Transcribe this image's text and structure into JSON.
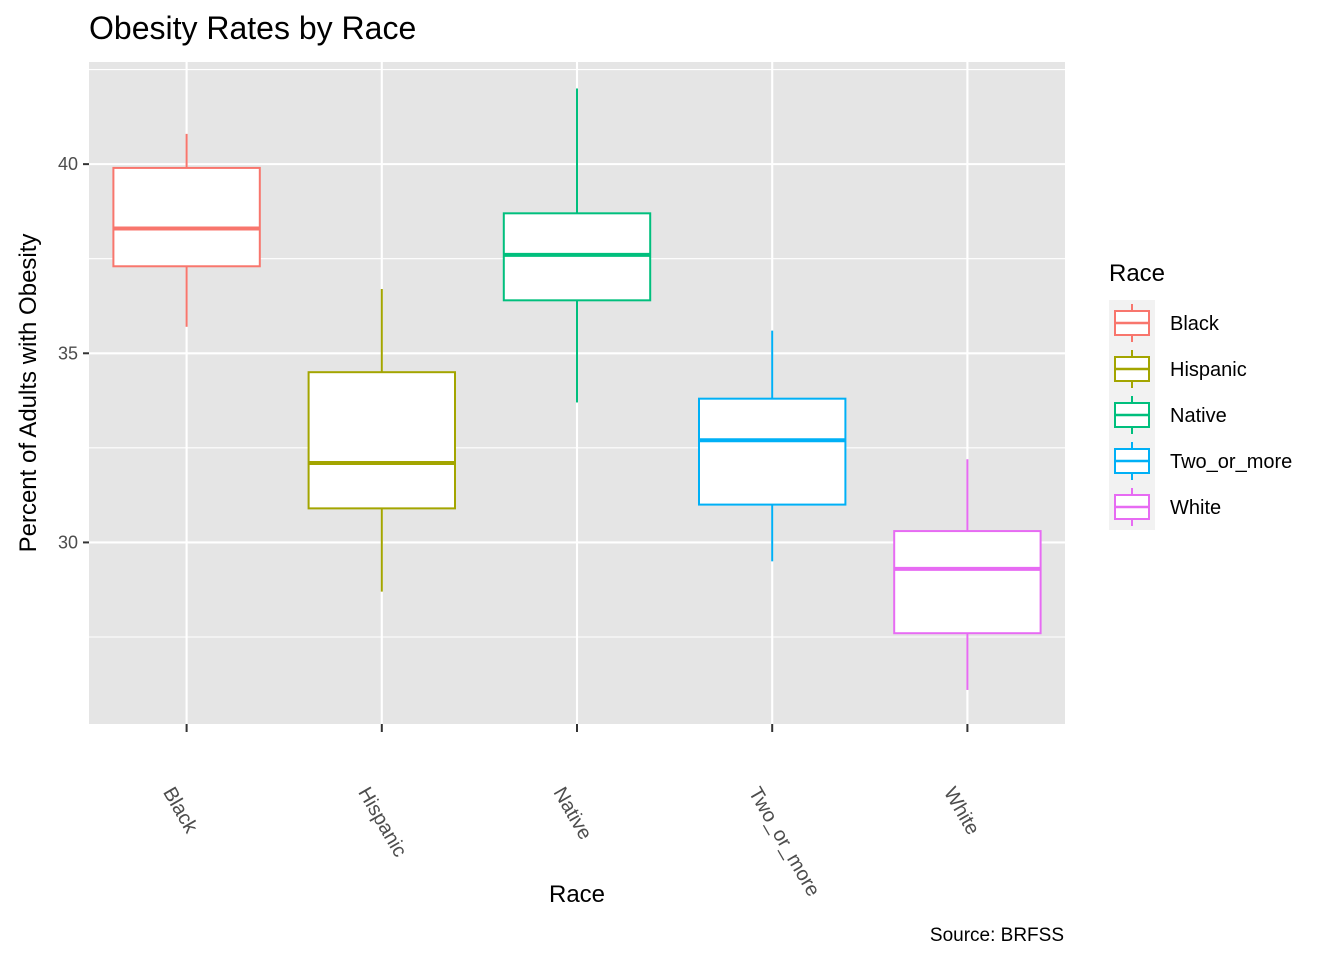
{
  "chart_data": {
    "type": "boxplot",
    "title": "Obesity Rates by Race",
    "xlabel": "Race",
    "ylabel": "Percent of Adults with Obesity",
    "caption": "Source: BRFSS",
    "ylim": [
      25.2,
      42.7
    ],
    "yticks": [
      30,
      35,
      40
    ],
    "grid": true,
    "legend": {
      "title": "Race",
      "position": "right"
    },
    "categories": [
      "Black",
      "Hispanic",
      "Native",
      "Two_or_more",
      "White"
    ],
    "series": [
      {
        "name": "Black",
        "color": "#F8766D",
        "min": 35.7,
        "q1": 37.3,
        "median": 38.3,
        "q3": 39.9,
        "max": 40.8
      },
      {
        "name": "Hispanic",
        "color": "#A3A500",
        "min": 28.7,
        "q1": 30.9,
        "median": 32.1,
        "q3": 34.5,
        "max": 36.7
      },
      {
        "name": "Native",
        "color": "#00BF7D",
        "min": 33.7,
        "q1": 36.4,
        "median": 37.6,
        "q3": 38.7,
        "max": 42.0
      },
      {
        "name": "Two_or_more",
        "color": "#00B0F6",
        "min": 29.5,
        "q1": 31.0,
        "median": 32.7,
        "q3": 33.8,
        "max": 35.6
      },
      {
        "name": "White",
        "color": "#E76BF3",
        "min": 26.1,
        "q1": 27.6,
        "median": 29.3,
        "q3": 30.3,
        "max": 32.2
      }
    ]
  }
}
